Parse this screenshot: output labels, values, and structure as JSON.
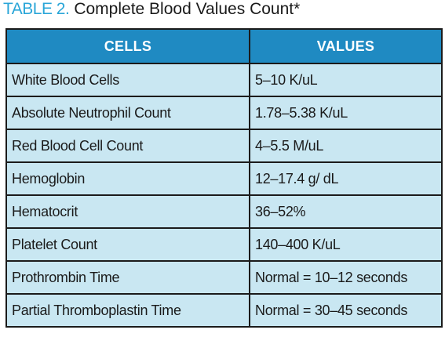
{
  "caption": {
    "label": "TABLE 2.",
    "title": "Complete Blood Values Count*"
  },
  "table": {
    "headers": [
      "CELLS",
      "VALUES"
    ],
    "rows": [
      [
        "White Blood Cells",
        "5–10 K/uL"
      ],
      [
        "Absolute Neutrophil Count",
        "1.78–5.38 K/uL"
      ],
      [
        "Red Blood Cell Count",
        "4–5.5 M/uL"
      ],
      [
        "Hemoglobin",
        "12–17.4 g/ dL"
      ],
      [
        "Hematocrit",
        "36–52%"
      ],
      [
        "Platelet Count",
        "140–400 K/uL"
      ],
      [
        "Prothrombin Time",
        "Normal = 10–12 seconds"
      ],
      [
        "Partial Thromboplastin Time",
        "Normal = 30–45 seconds"
      ]
    ]
  },
  "colors": {
    "caption_label": "#2aa6d8",
    "header_background": "#1f8ac2",
    "header_text": "#ffffff",
    "row_background": "#c9e7f2",
    "border": "#1b1b1b"
  }
}
